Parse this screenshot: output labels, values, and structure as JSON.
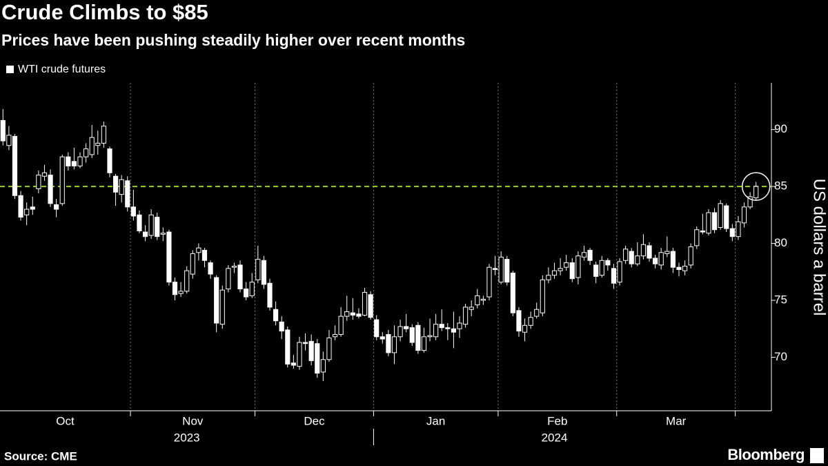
{
  "chart_data": {
    "type": "candlestick",
    "title": "Crude Climbs to $85",
    "subtitle": "Prices have been pushing steadily higher over recent months",
    "legend": "WTI crude futures",
    "y_label": "US dollars a barrel",
    "source": "Source: CME",
    "brand": "Bloomberg",
    "color": "#ffffff",
    "reference_line": {
      "value": 85,
      "color": "#9acd32"
    },
    "ylim": [
      65.3,
      94.1
    ],
    "yticks": [
      70,
      75,
      80,
      85,
      90
    ],
    "categories": [
      "Oct",
      "Oct",
      "Oct",
      "Oct",
      "Oct",
      "Oct",
      "Oct",
      "Oct",
      "Oct",
      "Oct",
      "Oct",
      "Oct",
      "Oct",
      "Oct",
      "Oct",
      "Oct",
      "Oct",
      "Oct",
      "Oct",
      "Oct",
      "Oct",
      "Oct",
      "Nov",
      "Nov",
      "Nov",
      "Nov",
      "Nov",
      "Nov",
      "Nov",
      "Nov",
      "Nov",
      "Nov",
      "Nov",
      "Nov",
      "Nov",
      "Nov",
      "Nov",
      "Nov",
      "Nov",
      "Nov",
      "Nov",
      "Nov",
      "Nov",
      "Dec",
      "Dec",
      "Dec",
      "Dec",
      "Dec",
      "Dec",
      "Dec",
      "Dec",
      "Dec",
      "Dec",
      "Dec",
      "Dec",
      "Dec",
      "Dec",
      "Dec",
      "Dec",
      "Dec",
      "Dec",
      "Dec",
      "Dec",
      "Jan",
      "Jan",
      "Jan",
      "Jan",
      "Jan",
      "Jan",
      "Jan",
      "Jan",
      "Jan",
      "Jan",
      "Jan",
      "Jan",
      "Jan",
      "Jan",
      "Jan",
      "Jan",
      "Jan",
      "Jan",
      "Jan",
      "Jan",
      "Jan",
      "Feb",
      "Feb",
      "Feb",
      "Feb",
      "Feb",
      "Feb",
      "Feb",
      "Feb",
      "Feb",
      "Feb",
      "Feb",
      "Feb",
      "Feb",
      "Feb",
      "Feb",
      "Feb",
      "Feb",
      "Feb",
      "Feb",
      "Feb",
      "Mar",
      "Mar",
      "Mar",
      "Mar",
      "Mar",
      "Mar",
      "Mar",
      "Mar",
      "Mar",
      "Mar",
      "Mar",
      "Mar",
      "Mar",
      "Mar",
      "Mar",
      "Mar",
      "Mar",
      "Mar",
      "Mar",
      "Mar",
      null,
      null,
      null,
      null
    ],
    "years": [
      {
        "label": "2023",
        "months": [
          "Oct",
          "Nov",
          "Dec"
        ]
      },
      {
        "label": "2024",
        "months": [
          "Jan",
          "Feb",
          "Mar"
        ]
      }
    ],
    "open": [
      90.8,
      88.6,
      89.4,
      84.2,
      82.5,
      83.2,
      84.8,
      85.9,
      86.0,
      83.4,
      83.5,
      87.6,
      87.2,
      86.8,
      87.6,
      87.8,
      88.6,
      88.8,
      88.3,
      85.9,
      84.3,
      85.5,
      83.2,
      82.5,
      81.0,
      80.7,
      82.3,
      80.8,
      81.0,
      76.6,
      75.6,
      75.8,
      77.3,
      79.2,
      79.4,
      78.3,
      77.0,
      72.9,
      76.0,
      77.9,
      78.1,
      76.0,
      75.4,
      76.8,
      78.5,
      76.5,
      74.2,
      73.1,
      72.4,
      69.5,
      69.2,
      71.3,
      71.4,
      71.2,
      68.7,
      69.8,
      71.8,
      72.0,
      73.6,
      73.9,
      73.8,
      73.7,
      75.5,
      73.3,
      71.8,
      72.0,
      70.4,
      71.8,
      72.7,
      72.6,
      72.8,
      70.6,
      71.8,
      71.8,
      72.9,
      72.6,
      72.5,
      72.5,
      72.9,
      74.2,
      74.6,
      75.0,
      75.3,
      77.8,
      76.6,
      78.6,
      77.4,
      74.1,
      72.2,
      72.8,
      73.6,
      73.9,
      76.8,
      77.2,
      77.6,
      77.9,
      78.3,
      77.0,
      78.8,
      79.4,
      78.1,
      77.2,
      78.5,
      77.8,
      76.6,
      78.5,
      79.3,
      78.2,
      78.9,
      79.8,
      78.7,
      78.1,
      79.1,
      79.3,
      77.9,
      77.6,
      78.1,
      79.8,
      81.1,
      80.9,
      82.7,
      81.4,
      83.3,
      81.3,
      80.6,
      81.8,
      83.2,
      84.0
    ],
    "high": [
      91.8,
      90.3,
      89.6,
      84.6,
      83.6,
      84.1,
      86.4,
      86.9,
      86.5,
      83.9,
      87.8,
      88.0,
      88.4,
      88.0,
      88.8,
      90.4,
      89.9,
      90.7,
      88.5,
      86.1,
      86.0,
      85.9,
      84.7,
      82.9,
      81.6,
      83.0,
      82.7,
      81.4,
      81.2,
      77.0,
      76.6,
      78.0,
      79.4,
      80.0,
      79.6,
      78.5,
      77.2,
      76.3,
      78.1,
      78.3,
      78.5,
      76.6,
      77.4,
      79.8,
      78.9,
      76.9,
      74.9,
      73.6,
      72.7,
      70.2,
      71.8,
      72.1,
      72.0,
      71.6,
      70.5,
      72.4,
      72.8,
      74.4,
      75.4,
      75.2,
      74.3,
      76.1,
      75.8,
      73.7,
      72.2,
      72.4,
      72.8,
      73.3,
      73.8,
      72.9,
      73.1,
      72.6,
      73.4,
      73.8,
      74.2,
      73.0,
      74.0,
      73.6,
      74.7,
      75.0,
      76.0,
      75.4,
      78.2,
      78.9,
      79.3,
      78.9,
      77.6,
      74.4,
      73.4,
      74.0,
      74.8,
      77.2,
      77.9,
      78.3,
      78.7,
      79.0,
      78.7,
      79.3,
      79.8,
      79.6,
      78.4,
      78.9,
      78.7,
      78.2,
      78.7,
      79.8,
      79.6,
      80.1,
      80.8,
      80.1,
      79.0,
      79.6,
      80.6,
      79.6,
      78.3,
      78.5,
      80.0,
      81.5,
      82.6,
      83.0,
      83.1,
      83.8,
      83.5,
      81.7,
      82.4,
      83.6,
      84.5,
      85.4
    ],
    "low": [
      88.6,
      88.2,
      83.9,
      82.0,
      81.6,
      82.5,
      84.4,
      85.5,
      83.2,
      82.3,
      83.3,
      86.4,
      86.5,
      86.6,
      87.1,
      87.5,
      87.8,
      88.4,
      85.8,
      83.3,
      83.6,
      82.8,
      82.0,
      80.9,
      80.2,
      80.4,
      80.3,
      80.2,
      76.3,
      75.0,
      75.3,
      75.6,
      76.9,
      78.5,
      77.9,
      76.9,
      72.2,
      72.5,
      75.7,
      77.4,
      75.7,
      75.0,
      75.2,
      76.5,
      76.0,
      74.1,
      72.8,
      71.6,
      69.1,
      69.0,
      68.9,
      70.6,
      69.3,
      68.2,
      67.9,
      69.6,
      71.5,
      71.8,
      73.2,
      73.3,
      73.4,
      73.6,
      73.3,
      71.5,
      71.2,
      70.1,
      69.4,
      71.4,
      72.2,
      71.0,
      70.3,
      70.4,
      71.4,
      71.5,
      72.3,
      71.5,
      70.8,
      71.7,
      72.6,
      73.6,
      74.3,
      74.6,
      75.0,
      77.2,
      76.4,
      76.3,
      73.6,
      71.8,
      71.4,
      72.5,
      73.4,
      73.6,
      76.5,
      76.9,
      77.2,
      77.6,
      76.6,
      76.4,
      78.5,
      78.1,
      76.5,
      77.0,
      77.6,
      76.0,
      76.3,
      78.2,
      77.9,
      78.0,
      78.6,
      78.4,
      77.8,
      77.7,
      78.8,
      77.4,
      77.1,
      77.2,
      77.8,
      79.5,
      80.8,
      80.7,
      80.9,
      81.2,
      81.0,
      80.2,
      80.3,
      81.4,
      83.0,
      83.8
    ],
    "close": [
      89.0,
      89.5,
      84.2,
      82.3,
      83.0,
      83.0,
      86.0,
      86.2,
      83.5,
      83.0,
      87.6,
      86.8,
      86.8,
      87.6,
      88.3,
      89.3,
      88.8,
      90.3,
      86.2,
      84.5,
      85.6,
      83.2,
      82.4,
      81.1,
      80.6,
      82.5,
      80.6,
      80.9,
      76.6,
      75.5,
      75.8,
      77.6,
      79.1,
      79.6,
      78.5,
      77.3,
      73.0,
      75.9,
      77.8,
      78.0,
      76.0,
      75.3,
      76.6,
      78.6,
      76.4,
      74.4,
      73.2,
      72.3,
      69.4,
      69.3,
      71.3,
      71.2,
      69.7,
      68.6,
      69.8,
      71.7,
      72.0,
      73.6,
      74.0,
      73.7,
      73.6,
      75.7,
      73.5,
      71.8,
      71.6,
      70.4,
      71.8,
      72.7,
      72.5,
      71.3,
      70.6,
      71.8,
      71.9,
      72.9,
      72.6,
      72.5,
      72.2,
      73.0,
      74.4,
      74.4,
      75.4,
      75.1,
      77.9,
      77.7,
      78.8,
      76.6,
      73.9,
      72.3,
      72.8,
      73.5,
      74.2,
      76.8,
      77.2,
      77.6,
      77.8,
      78.3,
      76.9,
      78.9,
      79.2,
      78.5,
      77.1,
      78.5,
      78.1,
      76.5,
      78.4,
      79.5,
      78.2,
      78.9,
      79.9,
      78.7,
      78.2,
      79.2,
      79.3,
      77.9,
      77.7,
      78.0,
      79.7,
      81.2,
      81.0,
      82.7,
      81.2,
      83.5,
      81.3,
      80.6,
      81.9,
      83.2,
      84.1,
      85.0
    ]
  }
}
